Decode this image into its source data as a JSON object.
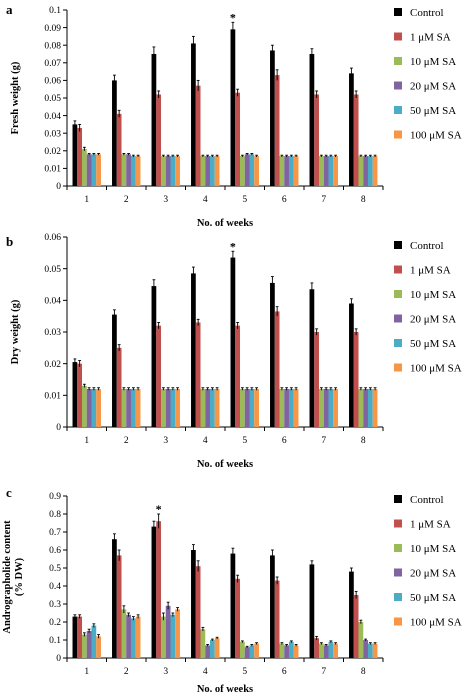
{
  "colors": {
    "Control": "#000000",
    "1 μM SA": "#c0504d",
    "10 μM SA": "#9bbb59",
    "20 μM SA": "#8064a2",
    "50 μM SA": "#4bacc6",
    "100 μM SA": "#f79646"
  },
  "chart_data": [
    {
      "type": "bar",
      "panel_label": "a",
      "xlabel": "No. of weeks",
      "ylabel": "Fresh weight (g)",
      "ylim": [
        0,
        0.1
      ],
      "yticks": [
        0,
        0.01,
        0.02,
        0.03,
        0.04,
        0.05,
        0.06,
        0.07,
        0.08,
        0.09,
        0.1
      ],
      "ytick_labels": [
        "0",
        "0.01",
        "0.02",
        "0.03",
        "0.04",
        "0.05",
        "0.06",
        "0.07",
        "0.08",
        "0.09",
        "0.1"
      ],
      "categories": [
        "1",
        "2",
        "3",
        "4",
        "5",
        "6",
        "7",
        "8"
      ],
      "legend_position": "right",
      "annotations": [
        {
          "text": "*",
          "category": "5",
          "series": "Control"
        }
      ],
      "series": [
        {
          "name": "Control",
          "values": [
            0.035,
            0.06,
            0.075,
            0.081,
            0.089,
            0.077,
            0.075,
            0.064
          ],
          "errors": [
            0.002,
            0.003,
            0.004,
            0.004,
            0.004,
            0.003,
            0.003,
            0.003
          ]
        },
        {
          "name": "1 μM SA",
          "values": [
            0.033,
            0.041,
            0.052,
            0.057,
            0.053,
            0.063,
            0.052,
            0.052
          ],
          "errors": [
            0.002,
            0.002,
            0.002,
            0.003,
            0.002,
            0.003,
            0.002,
            0.002
          ]
        },
        {
          "name": "10 μM SA",
          "values": [
            0.021,
            0.018,
            0.017,
            0.017,
            0.017,
            0.017,
            0.017,
            0.017
          ],
          "errors": [
            0.001,
            0.0005,
            0.0005,
            0.0005,
            0.0005,
            0.0005,
            0.0005,
            0.0005
          ]
        },
        {
          "name": "20 μM SA",
          "values": [
            0.018,
            0.018,
            0.017,
            0.017,
            0.018,
            0.017,
            0.017,
            0.017
          ],
          "errors": [
            0.0005,
            0.0005,
            0.0005,
            0.0005,
            0.0005,
            0.0005,
            0.0005,
            0.0005
          ]
        },
        {
          "name": "50 μM SA",
          "values": [
            0.018,
            0.017,
            0.017,
            0.017,
            0.018,
            0.017,
            0.017,
            0.017
          ],
          "errors": [
            0.0005,
            0.0005,
            0.0005,
            0.0005,
            0.0005,
            0.0005,
            0.0005,
            0.0005
          ]
        },
        {
          "name": "100 μM SA",
          "values": [
            0.018,
            0.017,
            0.017,
            0.017,
            0.017,
            0.017,
            0.017,
            0.017
          ],
          "errors": [
            0.0005,
            0.0005,
            0.0005,
            0.0005,
            0.0005,
            0.0005,
            0.0005,
            0.0005
          ]
        }
      ]
    },
    {
      "type": "bar",
      "panel_label": "b",
      "xlabel": "No. of weeks",
      "ylabel": "Dry  weight (g)",
      "ylim": [
        0,
        0.06
      ],
      "yticks": [
        0,
        0.01,
        0.02,
        0.03,
        0.04,
        0.05,
        0.06
      ],
      "ytick_labels": [
        "0",
        "0.01",
        "0.02",
        "0.03",
        "0.04",
        "0.05",
        "0.06"
      ],
      "categories": [
        "1",
        "2",
        "3",
        "4",
        "5",
        "6",
        "7",
        "8"
      ],
      "legend_position": "right",
      "annotations": [
        {
          "text": "*",
          "category": "5",
          "series": "Control"
        }
      ],
      "series": [
        {
          "name": "Control",
          "values": [
            0.0205,
            0.0355,
            0.0445,
            0.0485,
            0.0535,
            0.0455,
            0.0435,
            0.039
          ],
          "errors": [
            0.001,
            0.0015,
            0.002,
            0.002,
            0.002,
            0.002,
            0.002,
            0.0015
          ]
        },
        {
          "name": "1 μM SA",
          "values": [
            0.02,
            0.025,
            0.032,
            0.033,
            0.032,
            0.0365,
            0.03,
            0.03
          ],
          "errors": [
            0.001,
            0.001,
            0.001,
            0.001,
            0.001,
            0.0015,
            0.001,
            0.001
          ]
        },
        {
          "name": "10 μM SA",
          "values": [
            0.013,
            0.012,
            0.012,
            0.012,
            0.012,
            0.012,
            0.012,
            0.012
          ],
          "errors": [
            0.0005,
            0.0004,
            0.0004,
            0.0004,
            0.0004,
            0.0004,
            0.0004,
            0.0004
          ]
        },
        {
          "name": "20 μM SA",
          "values": [
            0.012,
            0.012,
            0.012,
            0.012,
            0.012,
            0.012,
            0.012,
            0.012
          ],
          "errors": [
            0.0004,
            0.0004,
            0.0004,
            0.0004,
            0.0004,
            0.0004,
            0.0004,
            0.0004
          ]
        },
        {
          "name": "50 μM SA",
          "values": [
            0.012,
            0.012,
            0.012,
            0.012,
            0.012,
            0.012,
            0.012,
            0.012
          ],
          "errors": [
            0.0004,
            0.0004,
            0.0004,
            0.0004,
            0.0004,
            0.0004,
            0.0004,
            0.0004
          ]
        },
        {
          "name": "100 μM SA",
          "values": [
            0.012,
            0.012,
            0.012,
            0.012,
            0.012,
            0.012,
            0.012,
            0.012
          ],
          "errors": [
            0.0004,
            0.0004,
            0.0004,
            0.0004,
            0.0004,
            0.0004,
            0.0004,
            0.0004
          ]
        }
      ]
    },
    {
      "type": "bar",
      "panel_label": "c",
      "xlabel": "No. of weeks",
      "ylabel": "Andrographolide content (% DW)",
      "ylabel_lines": [
        "Andrographolide content",
        "(% DW)"
      ],
      "ylim": [
        0,
        0.9
      ],
      "yticks": [
        0,
        0.1,
        0.2,
        0.3,
        0.4,
        0.5,
        0.6,
        0.7,
        0.8,
        0.9
      ],
      "ytick_labels": [
        "0",
        "0.1",
        "0.2",
        "0.3",
        "0.4",
        "0.5",
        "0.6",
        "0.7",
        "0.8",
        "0.9"
      ],
      "categories": [
        "1",
        "2",
        "3",
        "4",
        "5",
        "6",
        "7",
        "8"
      ],
      "legend_position": "right",
      "annotations": [
        {
          "text": "*",
          "category": "3",
          "series": "1 μM SA"
        }
      ],
      "series": [
        {
          "name": "Control",
          "values": [
            0.23,
            0.66,
            0.73,
            0.6,
            0.58,
            0.57,
            0.52,
            0.48
          ],
          "errors": [
            0.01,
            0.03,
            0.03,
            0.03,
            0.03,
            0.03,
            0.02,
            0.02
          ]
        },
        {
          "name": "1 μM SA",
          "values": [
            0.23,
            0.57,
            0.76,
            0.51,
            0.44,
            0.43,
            0.11,
            0.35
          ],
          "errors": [
            0.01,
            0.03,
            0.04,
            0.03,
            0.02,
            0.02,
            0.01,
            0.02
          ]
        },
        {
          "name": "10 μM SA",
          "values": [
            0.13,
            0.27,
            0.23,
            0.16,
            0.09,
            0.08,
            0.08,
            0.2
          ],
          "errors": [
            0.01,
            0.02,
            0.02,
            0.01,
            0.005,
            0.005,
            0.005,
            0.01
          ]
        },
        {
          "name": "20 μM SA",
          "values": [
            0.15,
            0.24,
            0.29,
            0.07,
            0.06,
            0.07,
            0.07,
            0.1
          ],
          "errors": [
            0.01,
            0.01,
            0.02,
            0.005,
            0.005,
            0.005,
            0.005,
            0.005
          ]
        },
        {
          "name": "50 μM SA",
          "values": [
            0.18,
            0.22,
            0.24,
            0.1,
            0.07,
            0.09,
            0.09,
            0.08
          ],
          "errors": [
            0.01,
            0.01,
            0.01,
            0.005,
            0.005,
            0.005,
            0.005,
            0.005
          ]
        },
        {
          "name": "100 μM SA",
          "values": [
            0.12,
            0.23,
            0.27,
            0.11,
            0.08,
            0.07,
            0.08,
            0.08
          ],
          "errors": [
            0.01,
            0.01,
            0.01,
            0.005,
            0.005,
            0.005,
            0.005,
            0.005
          ]
        }
      ]
    }
  ]
}
